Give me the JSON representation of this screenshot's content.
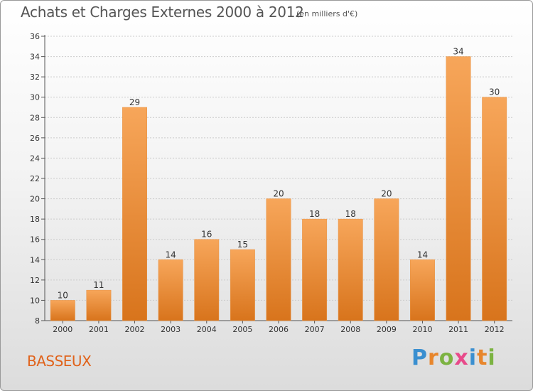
{
  "title": "Achats et Charges Externes 2000 à 2012",
  "subtitle": "(en milliers d'€)",
  "location": "BASSEUX",
  "brand": {
    "text": "Proxiti",
    "letters": [
      {
        "ch": "P",
        "color": "#3a8fd0"
      },
      {
        "ch": "r",
        "color": "#e8862c"
      },
      {
        "ch": "o",
        "color": "#7cb342"
      },
      {
        "ch": "x",
        "color": "#e84a8a"
      },
      {
        "ch": "i",
        "color": "#3a8fd0"
      },
      {
        "ch": "t",
        "color": "#e8862c"
      },
      {
        "ch": "i",
        "color": "#7cb342"
      }
    ]
  },
  "colors": {
    "bar_light": "#f7a65a",
    "bar_dark": "#d8741c",
    "grid": "#cccccc",
    "axis": "#555555"
  },
  "chart_data": {
    "type": "bar",
    "title": "Achats et Charges Externes 2000 à 2012",
    "subtitle": "(en milliers d'€)",
    "categories": [
      "2000",
      "2001",
      "2002",
      "2003",
      "2004",
      "2005",
      "2006",
      "2007",
      "2008",
      "2009",
      "2010",
      "2011",
      "2012"
    ],
    "values": [
      10,
      11,
      29,
      14,
      16,
      15,
      20,
      18,
      18,
      20,
      14,
      34,
      30
    ],
    "ylim": [
      8,
      36
    ],
    "yticks": [
      8,
      10,
      12,
      14,
      16,
      18,
      20,
      22,
      24,
      26,
      28,
      30,
      32,
      34,
      36
    ],
    "xlabel": "",
    "ylabel": "",
    "grid": true,
    "legend": "none"
  }
}
